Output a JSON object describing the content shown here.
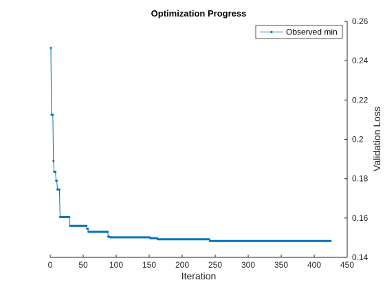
{
  "chart_data": {
    "type": "line",
    "title": "Optimization Progress",
    "xlabel": "Iteration",
    "ylabel": "Validation Loss",
    "xlim": [
      0,
      450
    ],
    "ylim": [
      0.14,
      0.26
    ],
    "xticks": [
      0,
      50,
      100,
      150,
      200,
      250,
      300,
      350,
      400,
      450
    ],
    "yticks": [
      0.14,
      0.16,
      0.18,
      0.2,
      0.22,
      0.24,
      0.26
    ],
    "ytick_labels": [
      "0.14",
      "0.16",
      "0.18",
      "0.2",
      "0.22",
      "0.24",
      "0.26"
    ],
    "y_axis_side": "right",
    "grid": false,
    "legend_position": "top-right",
    "series": [
      {
        "name": "Observed min",
        "color": "#0072BD",
        "marker": "dot",
        "steps": [
          [
            1,
            0.2465
          ],
          [
            2,
            0.2125
          ],
          [
            5,
            0.189
          ],
          [
            6,
            0.1835
          ],
          [
            9,
            0.179
          ],
          [
            11,
            0.1745
          ],
          [
            15,
            0.1605
          ],
          [
            30,
            0.156
          ],
          [
            56,
            0.1545
          ],
          [
            58,
            0.153
          ],
          [
            88,
            0.1505
          ],
          [
            91,
            0.1502
          ],
          [
            152,
            0.1497
          ],
          [
            163,
            0.1492
          ],
          [
            242,
            0.1483
          ],
          [
            425,
            0.1483
          ]
        ]
      }
    ]
  }
}
